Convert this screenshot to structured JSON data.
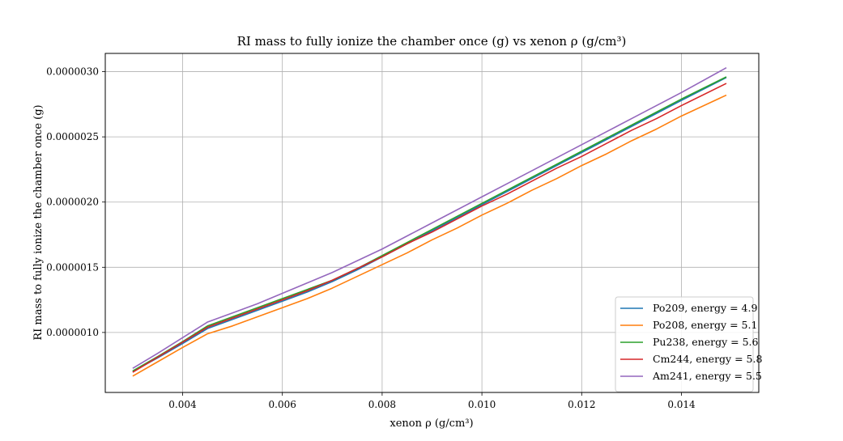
{
  "chart_data": {
    "type": "line",
    "title": "RI mass to fully ionize the chamber once (g) vs xenon ρ (g/cm³)",
    "xlabel": "xenon ρ (g/cm³)",
    "ylabel": "RI mass to fully ionize the chamber once (g)",
    "xlim": [
      0.00245,
      0.01555
    ],
    "ylim": [
      5.4e-07,
      3.14e-06
    ],
    "xticks": [
      0.004,
      0.006,
      0.008,
      0.01,
      0.012,
      0.014
    ],
    "xtick_labels": [
      "0.004",
      "0.006",
      "0.008",
      "0.010",
      "0.012",
      "0.014"
    ],
    "yticks": [
      1e-06,
      1.5e-06,
      2e-06,
      2.5e-06,
      3e-06
    ],
    "ytick_labels": [
      "0.0000010",
      "0.0000015",
      "0.0000020",
      "0.0000025",
      "0.0000030"
    ],
    "grid": true,
    "legend_position": "bottom-right",
    "x": [
      0.003,
      0.0035,
      0.004,
      0.0045,
      0.005,
      0.0055,
      0.006,
      0.0065,
      0.007,
      0.0075,
      0.008,
      0.0085,
      0.009,
      0.0095,
      0.01,
      0.0105,
      0.011,
      0.0115,
      0.012,
      0.0125,
      0.013,
      0.0135,
      0.014,
      0.0149
    ],
    "series": [
      {
        "name": "Po209, energy = 4.9",
        "color": "#1f77b4",
        "values": [
          7e-07,
          8.05e-07,
          9.15e-07,
          1.03e-06,
          1.1e-06,
          1.17e-06,
          1.24e-06,
          1.31e-06,
          1.39e-06,
          1.48e-06,
          1.58e-06,
          1.68e-06,
          1.78e-06,
          1.88e-06,
          1.98e-06,
          2.08e-06,
          2.18e-06,
          2.28e-06,
          2.38e-06,
          2.48e-06,
          2.58e-06,
          2.68e-06,
          2.78e-06,
          2.955e-06
        ]
      },
      {
        "name": "Po208, energy = 5.1",
        "color": "#ff7f0e",
        "values": [
          6.65e-07,
          7.75e-07,
          8.85e-07,
          9.9e-07,
          1.05e-06,
          1.12e-06,
          1.19e-06,
          1.26e-06,
          1.34e-06,
          1.43e-06,
          1.52e-06,
          1.61e-06,
          1.71e-06,
          1.8e-06,
          1.9e-06,
          1.99e-06,
          2.09e-06,
          2.18e-06,
          2.28e-06,
          2.37e-06,
          2.47e-06,
          2.56e-06,
          2.66e-06,
          2.82e-06
        ]
      },
      {
        "name": "Pu238, energy = 5.6",
        "color": "#2ca02c",
        "values": [
          7.05e-07,
          8.15e-07,
          9.3e-07,
          1.05e-06,
          1.12e-06,
          1.19e-06,
          1.26e-06,
          1.33e-06,
          1.4e-06,
          1.49e-06,
          1.59e-06,
          1.69e-06,
          1.79e-06,
          1.89e-06,
          1.99e-06,
          2.09e-06,
          2.19e-06,
          2.29e-06,
          2.39e-06,
          2.49e-06,
          2.59e-06,
          2.69e-06,
          2.79e-06,
          2.96e-06
        ]
      },
      {
        "name": "Cm244, energy = 5.8",
        "color": "#d62728",
        "values": [
          6.95e-07,
          8.1e-07,
          9.25e-07,
          1.04e-06,
          1.11e-06,
          1.18e-06,
          1.25e-06,
          1.32e-06,
          1.4e-06,
          1.49e-06,
          1.58e-06,
          1.68e-06,
          1.77e-06,
          1.87e-06,
          1.97e-06,
          2.06e-06,
          2.16e-06,
          2.26e-06,
          2.35e-06,
          2.45e-06,
          2.55e-06,
          2.64e-06,
          2.74e-06,
          2.91e-06
        ]
      },
      {
        "name": "Am241, energy = 5.5",
        "color": "#9467bd",
        "values": [
          7.25e-07,
          8.4e-07,
          9.6e-07,
          1.08e-06,
          1.15e-06,
          1.22e-06,
          1.3e-06,
          1.38e-06,
          1.46e-06,
          1.55e-06,
          1.64e-06,
          1.74e-06,
          1.84e-06,
          1.94e-06,
          2.04e-06,
          2.14e-06,
          2.24e-06,
          2.34e-06,
          2.44e-06,
          2.54e-06,
          2.64e-06,
          2.74e-06,
          2.84e-06,
          3.03e-06
        ]
      }
    ]
  }
}
